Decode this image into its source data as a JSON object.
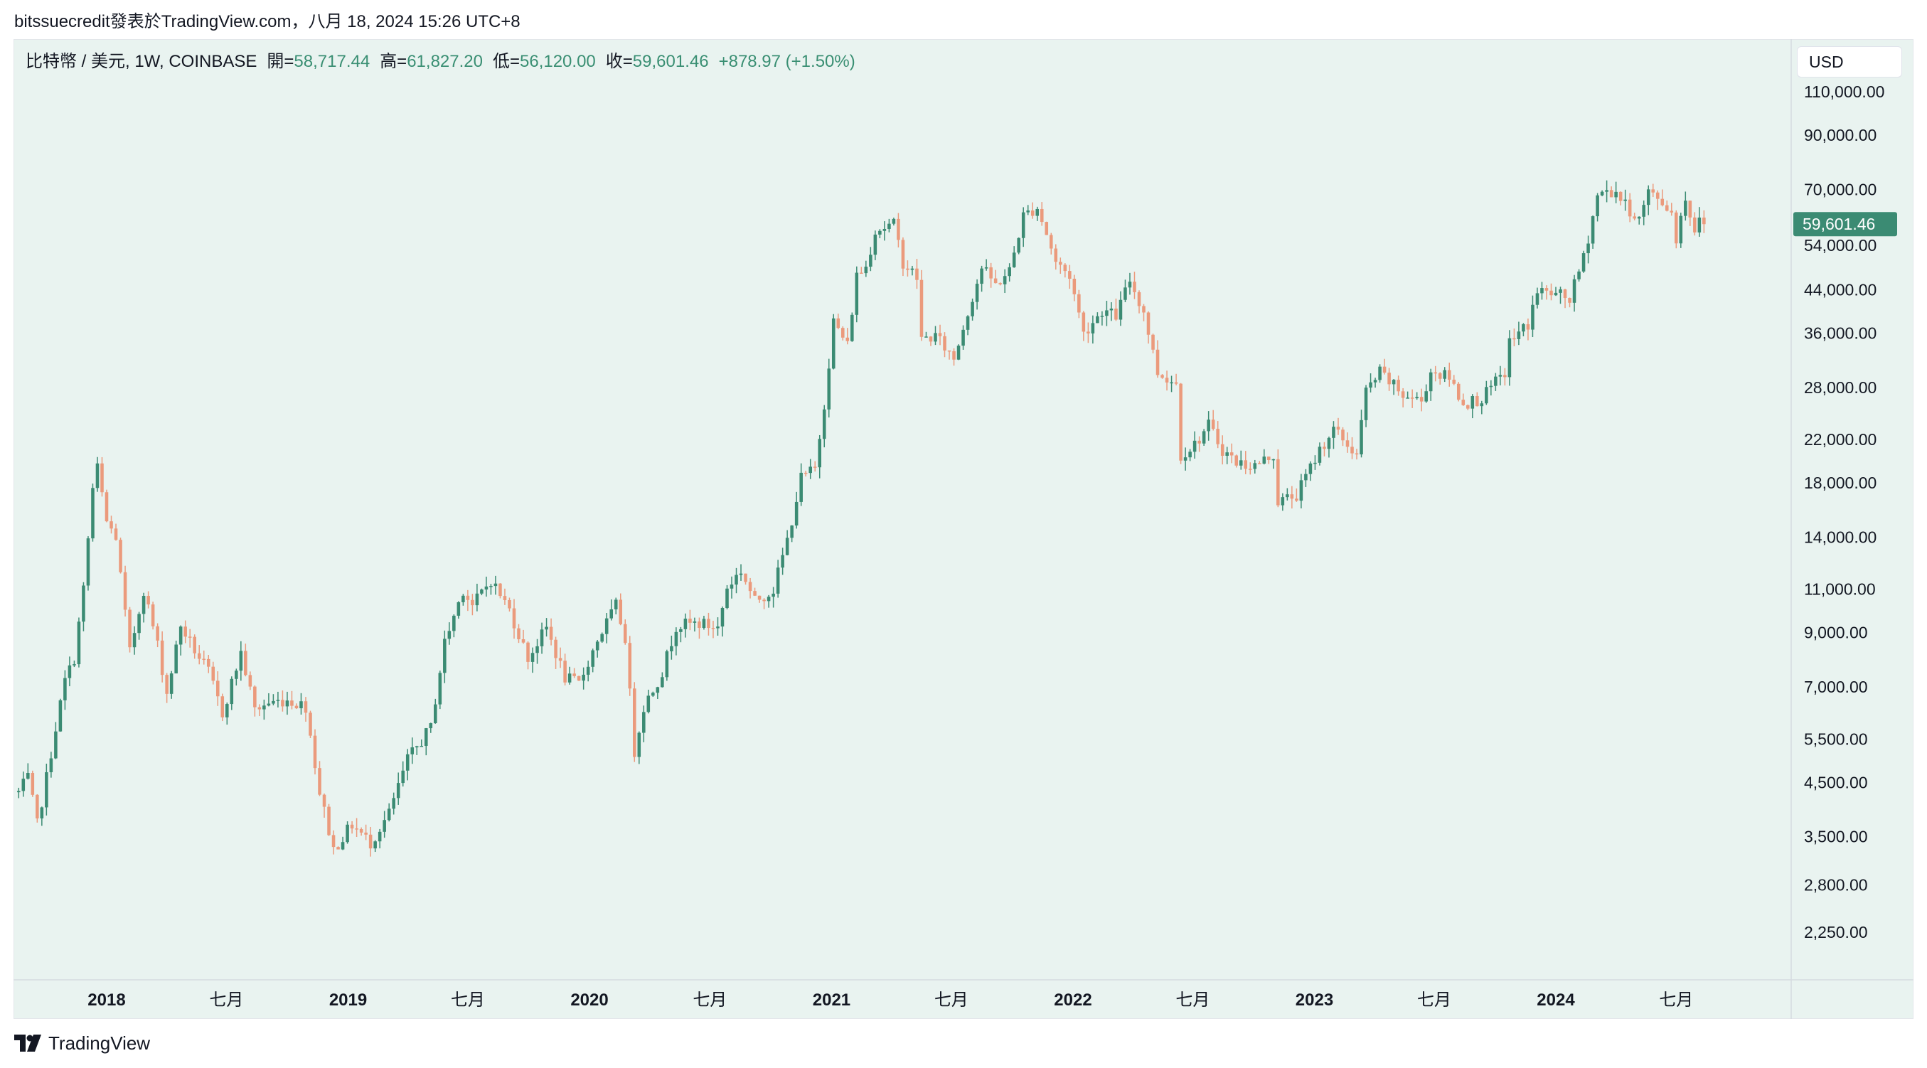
{
  "header": {
    "text": "bitssuecredit發表於TradingView.com，八月 18, 2024 15:26 UTC+8"
  },
  "legend": {
    "symbol": "比特幣 / 美元, 1W, COINBASE",
    "open_label": "開=",
    "open": "58,717.44",
    "high_label": "高=",
    "high": "61,827.20",
    "low_label": "低=",
    "low": "56,120.00",
    "close_label": "收=",
    "close": "59,601.46",
    "change": "+878.97 (+1.50%)"
  },
  "currency": "USD",
  "footer": {
    "brand": "TradingView"
  },
  "colors": {
    "up": "#3b8b73",
    "down": "#eb9a7c",
    "background": "#e9f3f0",
    "price_tag": "#3b8b73"
  },
  "chart_data": {
    "type": "candlestick",
    "timeframe": "1W",
    "scale": "log",
    "y_ticks": [
      110000,
      90000,
      70000,
      54000,
      44000,
      36000,
      28000,
      22000,
      18000,
      14000,
      11000,
      9000,
      7000,
      5500,
      4500,
      3500,
      2800,
      2250
    ],
    "y_tick_labels": [
      "110,000.00",
      "90,000.00",
      "70,000.00",
      "54,000.00",
      "44,000.00",
      "36,000.00",
      "28,000.00",
      "22,000.00",
      "18,000.00",
      "14,000.00",
      "11,000.00",
      "9,000.00",
      "7,000.00",
      "5,500.00",
      "4,500.00",
      "3,500.00",
      "2,800.00",
      "2,250.00"
    ],
    "x_ticks": [
      {
        "label": "2018",
        "date": "2018-01-01",
        "bold": true
      },
      {
        "label": "七月",
        "date": "2018-07-01",
        "bold": false
      },
      {
        "label": "2019",
        "date": "2019-01-01",
        "bold": true
      },
      {
        "label": "七月",
        "date": "2019-07-01",
        "bold": false
      },
      {
        "label": "2020",
        "date": "2020-01-01",
        "bold": true
      },
      {
        "label": "七月",
        "date": "2020-07-01",
        "bold": false
      },
      {
        "label": "2021",
        "date": "2021-01-01",
        "bold": true
      },
      {
        "label": "七月",
        "date": "2021-07-01",
        "bold": false
      },
      {
        "label": "2022",
        "date": "2022-01-01",
        "bold": true
      },
      {
        "label": "七月",
        "date": "2022-07-01",
        "bold": false
      },
      {
        "label": "2023",
        "date": "2023-01-01",
        "bold": true
      },
      {
        "label": "七月",
        "date": "2023-07-01",
        "bold": false
      },
      {
        "label": "2024",
        "date": "2024-01-01",
        "bold": true
      },
      {
        "label": "七月",
        "date": "2024-07-01",
        "bold": false
      }
    ],
    "last_price_label": "59,601.46",
    "series": [
      {
        "date": "2017-08-21",
        "close": 4300
      },
      {
        "date": "2017-09-04",
        "close": 4600
      },
      {
        "date": "2017-09-18",
        "close": 3700
      },
      {
        "date": "2017-10-02",
        "close": 4600
      },
      {
        "date": "2017-10-16",
        "close": 5800
      },
      {
        "date": "2017-10-30",
        "close": 7200
      },
      {
        "date": "2017-11-13",
        "close": 8000
      },
      {
        "date": "2017-11-27",
        "close": 11000
      },
      {
        "date": "2017-12-11",
        "close": 17500
      },
      {
        "date": "2017-12-18",
        "close": 19300
      },
      {
        "date": "2018-01-01",
        "close": 15000
      },
      {
        "date": "2018-01-15",
        "close": 14000
      },
      {
        "date": "2018-02-05",
        "close": 8200
      },
      {
        "date": "2018-02-26",
        "close": 11000
      },
      {
        "date": "2018-03-19",
        "close": 8500
      },
      {
        "date": "2018-04-02",
        "close": 6800
      },
      {
        "date": "2018-04-23",
        "close": 9300
      },
      {
        "date": "2018-05-14",
        "close": 8300
      },
      {
        "date": "2018-06-04",
        "close": 7500
      },
      {
        "date": "2018-06-25",
        "close": 6200
      },
      {
        "date": "2018-07-23",
        "close": 8200
      },
      {
        "date": "2018-08-13",
        "close": 6300
      },
      {
        "date": "2018-09-03",
        "close": 6500
      },
      {
        "date": "2018-10-01",
        "close": 6600
      },
      {
        "date": "2018-10-29",
        "close": 6400
      },
      {
        "date": "2018-11-19",
        "close": 4300
      },
      {
        "date": "2018-12-10",
        "close": 3300
      },
      {
        "date": "2019-01-07",
        "close": 3700
      },
      {
        "date": "2019-02-04",
        "close": 3400
      },
      {
        "date": "2019-03-04",
        "close": 3900
      },
      {
        "date": "2019-04-01",
        "close": 5000
      },
      {
        "date": "2019-05-06",
        "close": 5800
      },
      {
        "date": "2019-05-27",
        "close": 8600
      },
      {
        "date": "2019-06-24",
        "close": 11000
      },
      {
        "date": "2019-07-08",
        "close": 10200
      },
      {
        "date": "2019-08-05",
        "close": 11500
      },
      {
        "date": "2019-09-02",
        "close": 10000
      },
      {
        "date": "2019-09-30",
        "close": 8000
      },
      {
        "date": "2019-10-28",
        "close": 9200
      },
      {
        "date": "2019-11-25",
        "close": 7300
      },
      {
        "date": "2019-12-16",
        "close": 7100
      },
      {
        "date": "2020-01-13",
        "close": 8700
      },
      {
        "date": "2020-02-10",
        "close": 10200
      },
      {
        "date": "2020-02-24",
        "close": 8800
      },
      {
        "date": "2020-03-09",
        "close": 5200
      },
      {
        "date": "2020-03-23",
        "close": 6400
      },
      {
        "date": "2020-04-20",
        "close": 7500
      },
      {
        "date": "2020-05-11",
        "close": 9300
      },
      {
        "date": "2020-06-15",
        "close": 9400
      },
      {
        "date": "2020-07-13",
        "close": 9200
      },
      {
        "date": "2020-07-27",
        "close": 11100
      },
      {
        "date": "2020-08-17",
        "close": 12000
      },
      {
        "date": "2020-09-07",
        "close": 10400
      },
      {
        "date": "2020-10-05",
        "close": 11000
      },
      {
        "date": "2020-10-26",
        "close": 13800
      },
      {
        "date": "2020-11-16",
        "close": 18400
      },
      {
        "date": "2020-12-07",
        "close": 19200
      },
      {
        "date": "2020-12-21",
        "close": 26000
      },
      {
        "date": "2021-01-04",
        "close": 38000
      },
      {
        "date": "2021-01-25",
        "close": 34000
      },
      {
        "date": "2021-02-08",
        "close": 47000
      },
      {
        "date": "2021-02-22",
        "close": 49000
      },
      {
        "date": "2021-03-08",
        "close": 58000
      },
      {
        "date": "2021-04-05",
        "close": 59500
      },
      {
        "date": "2021-04-19",
        "close": 50000
      },
      {
        "date": "2021-05-10",
        "close": 46500
      },
      {
        "date": "2021-05-17",
        "close": 35000
      },
      {
        "date": "2021-06-07",
        "close": 35500
      },
      {
        "date": "2021-07-05",
        "close": 32000
      },
      {
        "date": "2021-07-26",
        "close": 39700
      },
      {
        "date": "2021-08-16",
        "close": 48800
      },
      {
        "date": "2021-09-06",
        "close": 45000
      },
      {
        "date": "2021-09-27",
        "close": 48000
      },
      {
        "date": "2021-10-18",
        "close": 62000
      },
      {
        "date": "2021-11-08",
        "close": 64500
      },
      {
        "date": "2021-11-22",
        "close": 57000
      },
      {
        "date": "2021-12-06",
        "close": 50000
      },
      {
        "date": "2021-12-27",
        "close": 47000
      },
      {
        "date": "2022-01-17",
        "close": 36000
      },
      {
        "date": "2022-02-14",
        "close": 40000
      },
      {
        "date": "2022-03-07",
        "close": 39000
      },
      {
        "date": "2022-03-28",
        "close": 46000
      },
      {
        "date": "2022-04-18",
        "close": 39700
      },
      {
        "date": "2022-05-09",
        "close": 30000
      },
      {
        "date": "2022-06-06",
        "close": 28500
      },
      {
        "date": "2022-06-13",
        "close": 20500
      },
      {
        "date": "2022-07-04",
        "close": 21500
      },
      {
        "date": "2022-07-25",
        "close": 23500
      },
      {
        "date": "2022-08-15",
        "close": 21000
      },
      {
        "date": "2022-09-05",
        "close": 19800
      },
      {
        "date": "2022-10-03",
        "close": 19500
      },
      {
        "date": "2022-10-31",
        "close": 20500
      },
      {
        "date": "2022-11-07",
        "close": 16500
      },
      {
        "date": "2022-12-05",
        "close": 17000
      },
      {
        "date": "2023-01-09",
        "close": 21000
      },
      {
        "date": "2023-01-30",
        "close": 23000
      },
      {
        "date": "2023-03-06",
        "close": 20500
      },
      {
        "date": "2023-03-20",
        "close": 27500
      },
      {
        "date": "2023-04-10",
        "close": 30000
      },
      {
        "date": "2023-05-15",
        "close": 27000
      },
      {
        "date": "2023-06-12",
        "close": 26300
      },
      {
        "date": "2023-06-26",
        "close": 30200
      },
      {
        "date": "2023-07-24",
        "close": 29300
      },
      {
        "date": "2023-08-14",
        "close": 26000
      },
      {
        "date": "2023-09-11",
        "close": 26600
      },
      {
        "date": "2023-10-16",
        "close": 30000
      },
      {
        "date": "2023-10-23",
        "close": 34500
      },
      {
        "date": "2023-11-20",
        "close": 37500
      },
      {
        "date": "2023-12-04",
        "close": 43800
      },
      {
        "date": "2024-01-08",
        "close": 42800
      },
      {
        "date": "2024-01-22",
        "close": 42100
      },
      {
        "date": "2024-02-12",
        "close": 51000
      },
      {
        "date": "2024-03-04",
        "close": 68000
      },
      {
        "date": "2024-03-11",
        "close": 69000
      },
      {
        "date": "2024-04-01",
        "close": 69300
      },
      {
        "date": "2024-04-15",
        "close": 64900
      },
      {
        "date": "2024-05-06",
        "close": 61000
      },
      {
        "date": "2024-05-20",
        "close": 69000
      },
      {
        "date": "2024-06-10",
        "close": 66000
      },
      {
        "date": "2024-06-24",
        "close": 62800
      },
      {
        "date": "2024-07-01",
        "close": 56000
      },
      {
        "date": "2024-07-15",
        "close": 67500
      },
      {
        "date": "2024-07-29",
        "close": 58000
      },
      {
        "date": "2024-08-05",
        "close": 60300
      },
      {
        "date": "2024-08-12",
        "close": 59601.46
      }
    ]
  }
}
